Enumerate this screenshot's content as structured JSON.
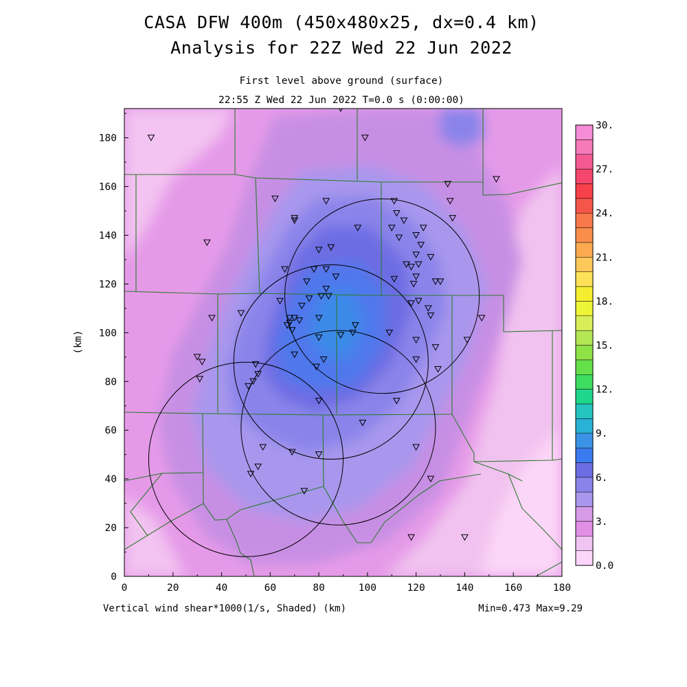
{
  "title_line1": "CASA DFW 400m (450x480x25, dx=0.4 km)",
  "title_line2": "Analysis for 22Z Wed 22 Jun 2022",
  "subtitle_line1": "First level above ground (surface)",
  "subtitle_line2": "22:55 Z Wed 22 Jun 2022   T=0.0 s (0:00:00)",
  "y_axis_label": "(km)",
  "footer_left": "Vertical wind shear*1000(1/s, Shaded)  (km)",
  "footer_right": "Min=0.473 Max=9.29",
  "x_ticks": [
    "0",
    "20",
    "40",
    "60",
    "80",
    "100",
    "120",
    "140",
    "160",
    "180"
  ],
  "y_ticks": [
    "0",
    "20",
    "40",
    "60",
    "80",
    "100",
    "120",
    "140",
    "160",
    "180"
  ],
  "colorbar_labels": [
    "0.0",
    "3.",
    "6.",
    "9.",
    "12.",
    "15.",
    "18.",
    "21.",
    "24.",
    "27.",
    "30."
  ],
  "colorbar_colors": [
    "#fdd5fa",
    "#f0c4f2",
    "#e28fe6",
    "#d69ae6",
    "#a897ed",
    "#8a84ea",
    "#6d6de3",
    "#3b7bf0",
    "#3c93e6",
    "#2ab1d6",
    "#25c4bf",
    "#1fd68d",
    "#3fdc62",
    "#65e04a",
    "#8fe246",
    "#b3e655",
    "#d8ee58",
    "#eef436",
    "#f5ee30",
    "#fde258",
    "#fcc85a",
    "#fbaa50",
    "#f98e4a",
    "#f7784a",
    "#f5564a",
    "#f6404a",
    "#f5466e",
    "#f45a92",
    "#f57ab8",
    "#f68cd6"
  ],
  "map": {
    "x_range_km": [
      0,
      180
    ],
    "y_range_km": [
      0,
      192
    ],
    "min_value": 0.473,
    "max_value": 9.29
  },
  "radar_rings": [
    {
      "x_km": 106,
      "y_km": 115,
      "radius_km": 40
    },
    {
      "x_km": 85,
      "y_km": 88,
      "radius_km": 40
    },
    {
      "x_km": 88,
      "y_km": 61,
      "radius_km": 40
    },
    {
      "x_km": 50,
      "y_km": 48,
      "radius_km": 40
    }
  ],
  "stations": [
    [
      11,
      180
    ],
    [
      89,
      192
    ],
    [
      99,
      180
    ],
    [
      153,
      163
    ],
    [
      133,
      161
    ],
    [
      134,
      154
    ],
    [
      135,
      147
    ],
    [
      62,
      155
    ],
    [
      83,
      154
    ],
    [
      70,
      147
    ],
    [
      70,
      146
    ],
    [
      111,
      154
    ],
    [
      112,
      149
    ],
    [
      115,
      146
    ],
    [
      123,
      143
    ],
    [
      96,
      143
    ],
    [
      110,
      143
    ],
    [
      113,
      139
    ],
    [
      120,
      140
    ],
    [
      122,
      136
    ],
    [
      34,
      137
    ],
    [
      80,
      134
    ],
    [
      85,
      135
    ],
    [
      120,
      132
    ],
    [
      126,
      131
    ],
    [
      116,
      128
    ],
    [
      118,
      127
    ],
    [
      121,
      128
    ],
    [
      66,
      126
    ],
    [
      78,
      126
    ],
    [
      83,
      126
    ],
    [
      75,
      121
    ],
    [
      87,
      123
    ],
    [
      111,
      122
    ],
    [
      120,
      123
    ],
    [
      128,
      121
    ],
    [
      130,
      121
    ],
    [
      119,
      120
    ],
    [
      83,
      118
    ],
    [
      81,
      115
    ],
    [
      84,
      115
    ],
    [
      64,
      113
    ],
    [
      73,
      111
    ],
    [
      76,
      114
    ],
    [
      118,
      112
    ],
    [
      121,
      113
    ],
    [
      125,
      110
    ],
    [
      126,
      107
    ],
    [
      147,
      106
    ],
    [
      36,
      106
    ],
    [
      48,
      108
    ],
    [
      68,
      106
    ],
    [
      70,
      106
    ],
    [
      72,
      105
    ],
    [
      68,
      104
    ],
    [
      67,
      103
    ],
    [
      69,
      101
    ],
    [
      80,
      106
    ],
    [
      80,
      98
    ],
    [
      89,
      99
    ],
    [
      94,
      100
    ],
    [
      95,
      103
    ],
    [
      109,
      100
    ],
    [
      120,
      97
    ],
    [
      141,
      97
    ],
    [
      128,
      94
    ],
    [
      70,
      91
    ],
    [
      82,
      89
    ],
    [
      120,
      89
    ],
    [
      30,
      90
    ],
    [
      32,
      88
    ],
    [
      79,
      86
    ],
    [
      54,
      87
    ],
    [
      55,
      83
    ],
    [
      129,
      85
    ],
    [
      31,
      81
    ],
    [
      53,
      80
    ],
    [
      51,
      78
    ],
    [
      80,
      72
    ],
    [
      112,
      72
    ],
    [
      98,
      63
    ],
    [
      57,
      53
    ],
    [
      69,
      51
    ],
    [
      80,
      50
    ],
    [
      120,
      53
    ],
    [
      55,
      45
    ],
    [
      52,
      42
    ],
    [
      126,
      40
    ],
    [
      74,
      35
    ],
    [
      118,
      16
    ],
    [
      140,
      16
    ]
  ]
}
